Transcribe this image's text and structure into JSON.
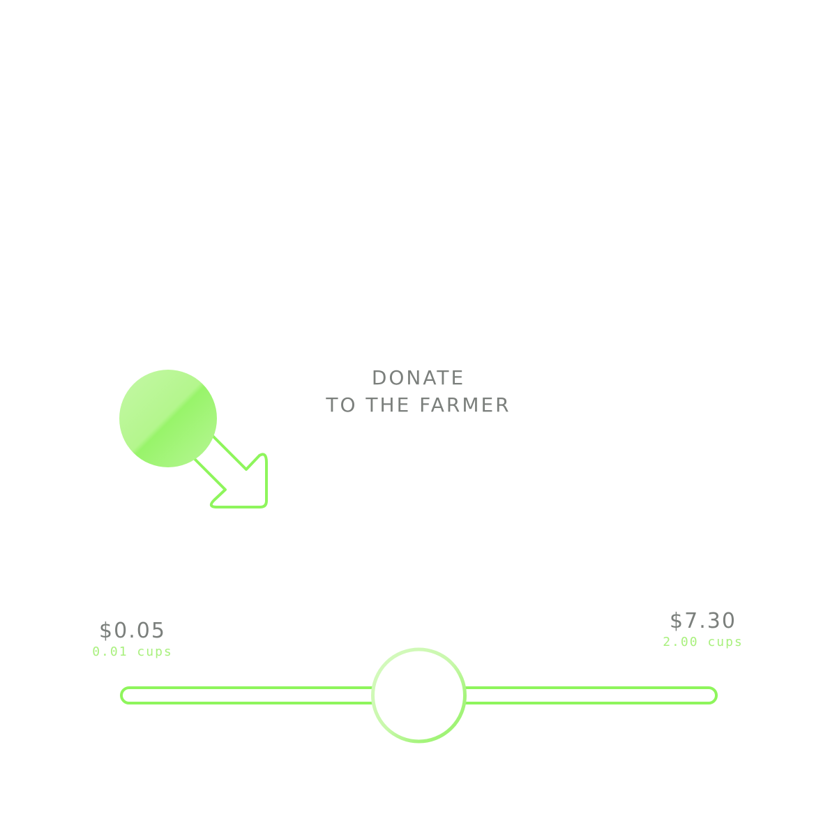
{
  "heading": {
    "line1": "DONATE",
    "line2": "TO THE FARMER"
  },
  "hint_icon": "drag-arrow-icon",
  "slider": {
    "min": {
      "amount": "$0.05",
      "cups": "0.01 cups"
    },
    "max": {
      "amount": "$7.30",
      "cups": "2.00 cups"
    },
    "value_fraction": 0.5
  },
  "colors": {
    "accent": "#8ef55c",
    "accent_light": "#b6f597",
    "text": "#7b7f7c"
  }
}
